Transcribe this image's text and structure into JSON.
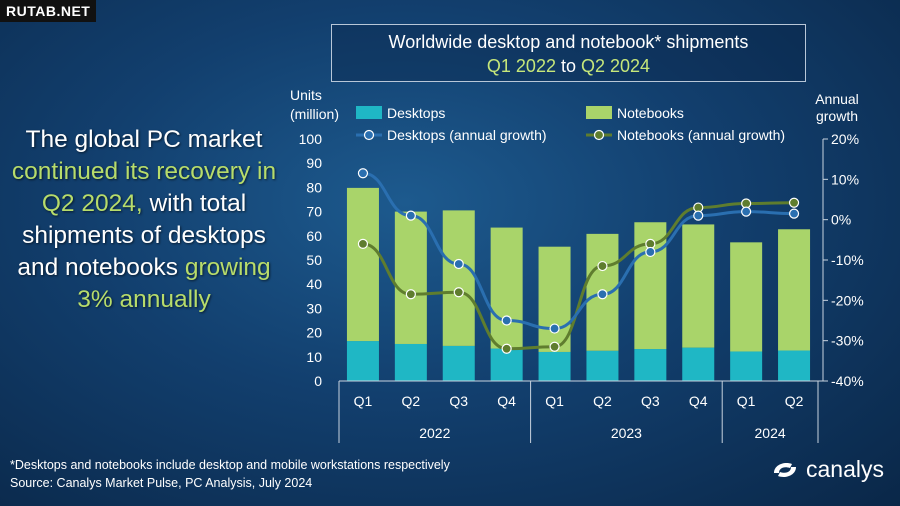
{
  "watermark": "RUTAB.NET",
  "title": {
    "line1": "Worldwide desktop and notebook* shipments",
    "q_start": "Q1 2022",
    "to": "to",
    "q_end": "Q2 2024"
  },
  "headline": {
    "p1": "The global PC market",
    "p2": "continued its recovery in Q2 2024,",
    "p3": "with total shipments of desktops and notebooks",
    "p4": "growing 3% annually"
  },
  "footnote": {
    "line1": "*Desktops and notebooks  include desktop and mobile workstations respectively",
    "line2": "Source:  Canalys Market Pulse, PC Analysis, July 2024"
  },
  "logo": {
    "text": "canalys"
  },
  "colors": {
    "desktops": "#1fb7c5",
    "notebooks": "#a9d46a",
    "desktops_growth": "#2a6fb0",
    "notebooks_growth": "#5f7d2e"
  },
  "chart_data": {
    "type": "bar",
    "stacked": true,
    "y_left_label_line1": "Units",
    "y_left_label_line2": "(million)",
    "y_right_label_line1": "Annual",
    "y_right_label_line2": "growth",
    "ylim": [
      0,
      100
    ],
    "y_ticks": [
      "0",
      "10",
      "20",
      "30",
      "40",
      "50",
      "60",
      "70",
      "80",
      "90",
      "100"
    ],
    "y2lim": [
      -40,
      20
    ],
    "y2_ticks": [
      "-40%",
      "-30%",
      "-20%",
      "-10%",
      "0%",
      "10%",
      "20%"
    ],
    "categories": [
      "Q1",
      "Q2",
      "Q3",
      "Q4",
      "Q1",
      "Q2",
      "Q3",
      "Q4",
      "Q1",
      "Q2"
    ],
    "years": [
      {
        "label": "2022",
        "start": 0,
        "end": 3
      },
      {
        "label": "2023",
        "start": 4,
        "end": 7
      },
      {
        "label": "2024",
        "start": 8,
        "end": 9
      }
    ],
    "series": [
      {
        "name": "Desktops",
        "kind": "bar",
        "values": [
          16.5,
          15.3,
          14.5,
          13.4,
          12.0,
          12.5,
          13.2,
          13.8,
          12.2,
          12.6
        ]
      },
      {
        "name": "Notebooks",
        "kind": "bar",
        "values": [
          63.3,
          54.7,
          56.0,
          50.0,
          43.5,
          48.3,
          52.4,
          50.9,
          45.1,
          50.1
        ]
      },
      {
        "name": "Desktops (annual growth)",
        "kind": "line",
        "axis": "right",
        "values": [
          11.5,
          1.0,
          -11.0,
          -25.0,
          -27.0,
          -18.5,
          -8.0,
          1.0,
          2.0,
          1.5
        ]
      },
      {
        "name": "Notebooks (annual growth)",
        "kind": "line",
        "axis": "right",
        "values": [
          -6.0,
          -18.5,
          -18.0,
          -32.0,
          -31.5,
          -11.5,
          -6.0,
          3.0,
          4.0,
          4.2
        ]
      }
    ],
    "grid": false,
    "legend": "top"
  }
}
